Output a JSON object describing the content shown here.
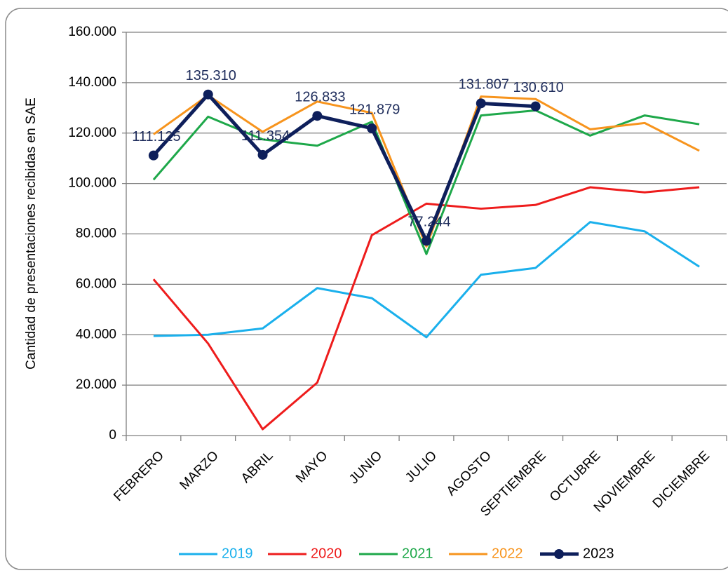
{
  "chart_data": {
    "type": "line",
    "y_label": "Cantidad de presentaciones recibidas en SAE",
    "categories": [
      "FEBRERO",
      "MARZO",
      "ABRIL",
      "MAYO",
      "JUNIO",
      "JULIO",
      "AGOSTO",
      "SEPTIEMBRE",
      "OCTUBRE",
      "NOVIEMBRE",
      "DICIEMBRE"
    ],
    "series": [
      {
        "name": "2019",
        "color": "#1ab0ec",
        "values": [
          39500,
          40000,
          42500,
          58500,
          54500,
          39000,
          63800,
          66500,
          84700,
          81000,
          67000
        ]
      },
      {
        "name": "2020",
        "color": "#ee1c1c",
        "values": [
          62000,
          36500,
          2500,
          21000,
          79500,
          92000,
          90000,
          91500,
          98500,
          96500,
          98500
        ]
      },
      {
        "name": "2021",
        "color": "#1ea84a",
        "values": [
          101500,
          126500,
          117500,
          115000,
          124500,
          72000,
          127000,
          129000,
          119000,
          127000,
          123500
        ]
      },
      {
        "name": "2022",
        "color": "#f7941d",
        "values": [
          119500,
          135000,
          120500,
          132500,
          128000,
          75000,
          134500,
          133500,
          121500,
          124000,
          113000
        ]
      },
      {
        "name": "2023",
        "color": "#0e1f5b",
        "marker": true,
        "values": [
          111125,
          135310,
          111354,
          126833,
          121879,
          77244,
          131807,
          130610,
          null,
          null,
          null
        ],
        "value_labels": [
          "111.125",
          "135.310",
          "111.354",
          "126.833",
          "121.879",
          "77.244",
          "131.807",
          "130.610",
          null,
          null,
          null
        ]
      }
    ],
    "ylim": [
      0,
      160000
    ],
    "yticks": [
      0,
      {
        "value": 20000,
        "label": "20.000"
      },
      {
        "value": 40000,
        "label": "40.000"
      },
      {
        "value": 60000,
        "label": "60.000"
      },
      {
        "value": 80000,
        "label": "80.000"
      },
      {
        "value": 100000,
        "label": "100.000"
      },
      {
        "value": 120000,
        "label": "120.000"
      },
      {
        "value": 140000,
        "label": "140.000"
      },
      {
        "value": 160000,
        "label": "160.000"
      }
    ],
    "grid": true,
    "legend": "bottom"
  }
}
